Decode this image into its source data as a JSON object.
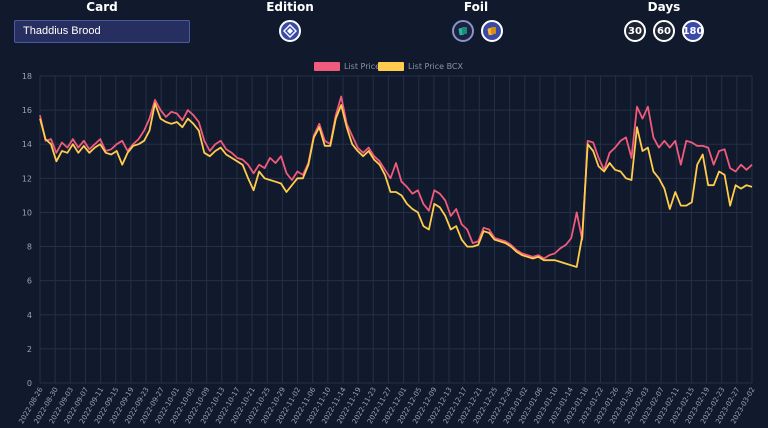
{
  "controls": {
    "card_label": "Card",
    "card_value": "Thaddius Brood",
    "edition_label": "Edition",
    "foil_label": "Foil",
    "days_label": "Days",
    "days_options": [
      "30",
      "60",
      "180"
    ],
    "days_selected": "180"
  },
  "colors": {
    "list_price": "#f05a7d",
    "list_price_bcx": "#ffcc4d",
    "background": "#111a2c",
    "grid": "#243049",
    "active_button": "#3b4aa8"
  },
  "icons": {
    "edition": "edition-logo-icon",
    "foil_regular": "regular-card-icon",
    "foil_gold": "gold-card-icon"
  },
  "chart_data": {
    "type": "line",
    "legend_position": "top-center",
    "grid": true,
    "ylim": [
      0,
      18
    ],
    "y_ticks": [
      0,
      2,
      4,
      6,
      8,
      10,
      12,
      14,
      16,
      18
    ],
    "x_tick_labels": [
      "2022-08-26",
      "2022-08-30",
      "2022-09-03",
      "2022-09-07",
      "2022-09-11",
      "2022-09-15",
      "2022-09-19",
      "2022-09-23",
      "2022-09-27",
      "2022-10-01",
      "2022-10-05",
      "2022-10-09",
      "2022-10-13",
      "2022-10-17",
      "2022-10-21",
      "2022-10-25",
      "2022-10-29",
      "2022-11-02",
      "2022-11-06",
      "2022-11-10",
      "2022-11-14",
      "2022-11-19",
      "2022-11-23",
      "2022-11-27",
      "2022-12-01",
      "2022-12-05",
      "2022-12-09",
      "2022-12-13",
      "2022-12-17",
      "2022-12-21",
      "2022-12-25",
      "2022-12-29",
      "2023-01-02",
      "2023-01-06",
      "2023-01-10",
      "2023-01-14",
      "2023-01-18",
      "2023-01-22",
      "2023-01-26",
      "2023-01-30",
      "2023-02-03",
      "2023-02-07",
      "2023-02-11",
      "2023-02-15",
      "2023-02-19",
      "2023-02-23",
      "2023-02-27",
      "2023-03-02"
    ],
    "series": [
      {
        "name": "List Price",
        "color": "#f05a7d",
        "values": [
          15.7,
          14.2,
          14.3,
          13.5,
          14.1,
          13.8,
          14.3,
          13.8,
          14.2,
          13.7,
          14.0,
          14.3,
          13.6,
          13.7,
          14.0,
          14.2,
          13.6,
          14.0,
          14.3,
          14.8,
          15.5,
          16.6,
          16.0,
          15.6,
          15.9,
          15.8,
          15.4,
          16.0,
          15.7,
          15.3,
          14.2,
          13.6,
          14.0,
          14.2,
          13.7,
          13.5,
          13.2,
          13.1,
          12.8,
          12.3,
          12.8,
          12.6,
          13.2,
          12.9,
          13.3,
          12.3,
          11.9,
          12.4,
          12.2,
          12.9,
          14.5,
          15.2,
          14.2,
          14.0,
          15.7,
          16.8,
          15.2,
          14.5,
          13.8,
          13.5,
          13.8,
          13.3,
          13.0,
          12.5,
          12.0,
          12.9,
          11.8,
          11.5,
          11.1,
          11.3,
          10.5,
          10.1,
          11.3,
          11.1,
          10.7,
          9.8,
          10.2,
          9.3,
          9.0,
          8.2,
          8.3,
          9.1,
          9.0,
          8.5,
          8.4,
          8.3,
          8.1,
          7.8,
          7.6,
          7.5,
          7.4,
          7.5,
          7.3,
          7.5,
          7.6,
          7.9,
          8.1,
          8.5,
          10.0,
          8.4,
          14.2,
          14.1,
          13.2,
          12.5,
          13.5,
          13.8,
          14.2,
          14.4,
          13.2,
          16.2,
          15.5,
          16.2,
          14.4,
          13.8,
          14.2,
          13.8,
          14.2,
          12.8,
          14.2,
          14.1,
          13.9,
          13.9,
          13.8,
          12.8,
          13.6,
          13.7,
          12.6,
          12.4,
          12.8,
          12.5,
          12.8
        ]
      },
      {
        "name": "List Price BCX",
        "color": "#ffcc4d",
        "values": [
          15.5,
          14.3,
          14.0,
          13.0,
          13.6,
          13.5,
          14.0,
          13.5,
          13.9,
          13.5,
          13.8,
          14.0,
          13.5,
          13.4,
          13.6,
          12.8,
          13.5,
          13.9,
          14.0,
          14.2,
          14.8,
          16.4,
          15.5,
          15.3,
          15.2,
          15.3,
          15.0,
          15.5,
          15.2,
          14.8,
          13.5,
          13.3,
          13.6,
          13.8,
          13.4,
          13.2,
          13.0,
          12.8,
          12.0,
          11.3,
          12.4,
          12.0,
          11.9,
          11.8,
          11.7,
          11.2,
          11.6,
          12.0,
          12.0,
          12.8,
          14.4,
          15.0,
          13.9,
          13.9,
          15.5,
          16.3,
          15.0,
          14.0,
          13.6,
          13.3,
          13.6,
          13.1,
          12.8,
          12.2,
          11.2,
          11.2,
          11.0,
          10.5,
          10.2,
          10.0,
          9.2,
          9.0,
          10.5,
          10.3,
          9.8,
          9.0,
          9.2,
          8.4,
          8.0,
          8.0,
          8.1,
          8.9,
          8.8,
          8.4,
          8.3,
          8.2,
          8.0,
          7.7,
          7.5,
          7.4,
          7.3,
          7.4,
          7.2,
          7.2,
          7.2,
          7.1,
          7.0,
          6.9,
          6.8,
          8.6,
          14.0,
          13.6,
          12.7,
          12.4,
          12.9,
          12.5,
          12.4,
          12.0,
          11.9,
          15.0,
          13.6,
          13.8,
          12.4,
          12.0,
          11.4,
          10.2,
          11.2,
          10.4,
          10.4,
          10.6,
          12.8,
          13.4,
          11.6,
          11.6,
          12.4,
          12.2,
          10.4,
          11.6,
          11.4,
          11.6,
          11.5
        ]
      }
    ]
  }
}
